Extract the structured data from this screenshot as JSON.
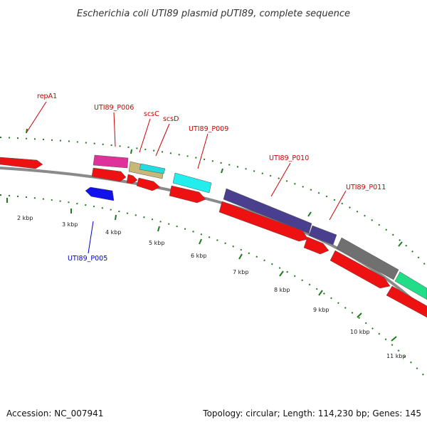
{
  "title": "Escherichia coli UTI89 plasmid pUTI89, complete sequence",
  "footer": {
    "accession": "Accession: NC_007941",
    "summary": "Topology: circular; Length: 114,230 bp; Genes: 145"
  },
  "colors": {
    "backbone": "#8a8a8a",
    "tick": "#1f7a1f",
    "forward_label": "#cc0000",
    "reverse_label": "#0000cc"
  },
  "kbp_labels": [
    "2 kbp",
    "3 kbp",
    "4 kbp",
    "5 kbp",
    "6 kbp",
    "7 kbp",
    "8 kbp",
    "9 kbp",
    "10 kbp",
    "11 kbp"
  ],
  "gene_labels": [
    {
      "text": "repA1",
      "color": "#cc0000"
    },
    {
      "text": "UTI89_P006",
      "color": "#cc0000"
    },
    {
      "text": "scsC",
      "color": "#cc0000"
    },
    {
      "text": "scsD",
      "color": "#cc0000"
    },
    {
      "text": "UTI89_P009",
      "color": "#cc0000"
    },
    {
      "text": "UTI89_P010",
      "color": "#cc0000"
    },
    {
      "text": "UTI89_P011",
      "color": "#cc0000"
    },
    {
      "text": "UTI89_P005",
      "color": "#0000cc"
    }
  ],
  "features": [
    {
      "name": "gene-arrow-repA1",
      "color": "#ee1111"
    },
    {
      "name": "feature-magenta",
      "color": "#e0309a"
    },
    {
      "name": "feature-khaki",
      "color": "#c8b878"
    },
    {
      "name": "feature-cyan-small",
      "color": "#22dddd"
    },
    {
      "name": "feature-cyan",
      "color": "#22eeee"
    },
    {
      "name": "feature-purple-1",
      "color": "#4a3f8f"
    },
    {
      "name": "feature-purple-2",
      "color": "#4a3f8f"
    },
    {
      "name": "feature-gray",
      "color": "#707070"
    },
    {
      "name": "feature-green",
      "color": "#22dd88"
    },
    {
      "name": "gene-arrow-P006",
      "color": "#ee1111"
    },
    {
      "name": "gene-arrow-scsC",
      "color": "#ee1111"
    },
    {
      "name": "gene-arrow-scsD",
      "color": "#ee1111"
    },
    {
      "name": "gene-arrow-P009",
      "color": "#ee1111"
    },
    {
      "name": "gene-arrow-P010",
      "color": "#ee1111"
    },
    {
      "name": "gene-arrow-P010b",
      "color": "#ee1111"
    },
    {
      "name": "gene-arrow-P011",
      "color": "#ee1111"
    },
    {
      "name": "gene-arrow-P012",
      "color": "#ee1111"
    },
    {
      "name": "gene-arrow-P005",
      "color": "#1111ee"
    }
  ]
}
